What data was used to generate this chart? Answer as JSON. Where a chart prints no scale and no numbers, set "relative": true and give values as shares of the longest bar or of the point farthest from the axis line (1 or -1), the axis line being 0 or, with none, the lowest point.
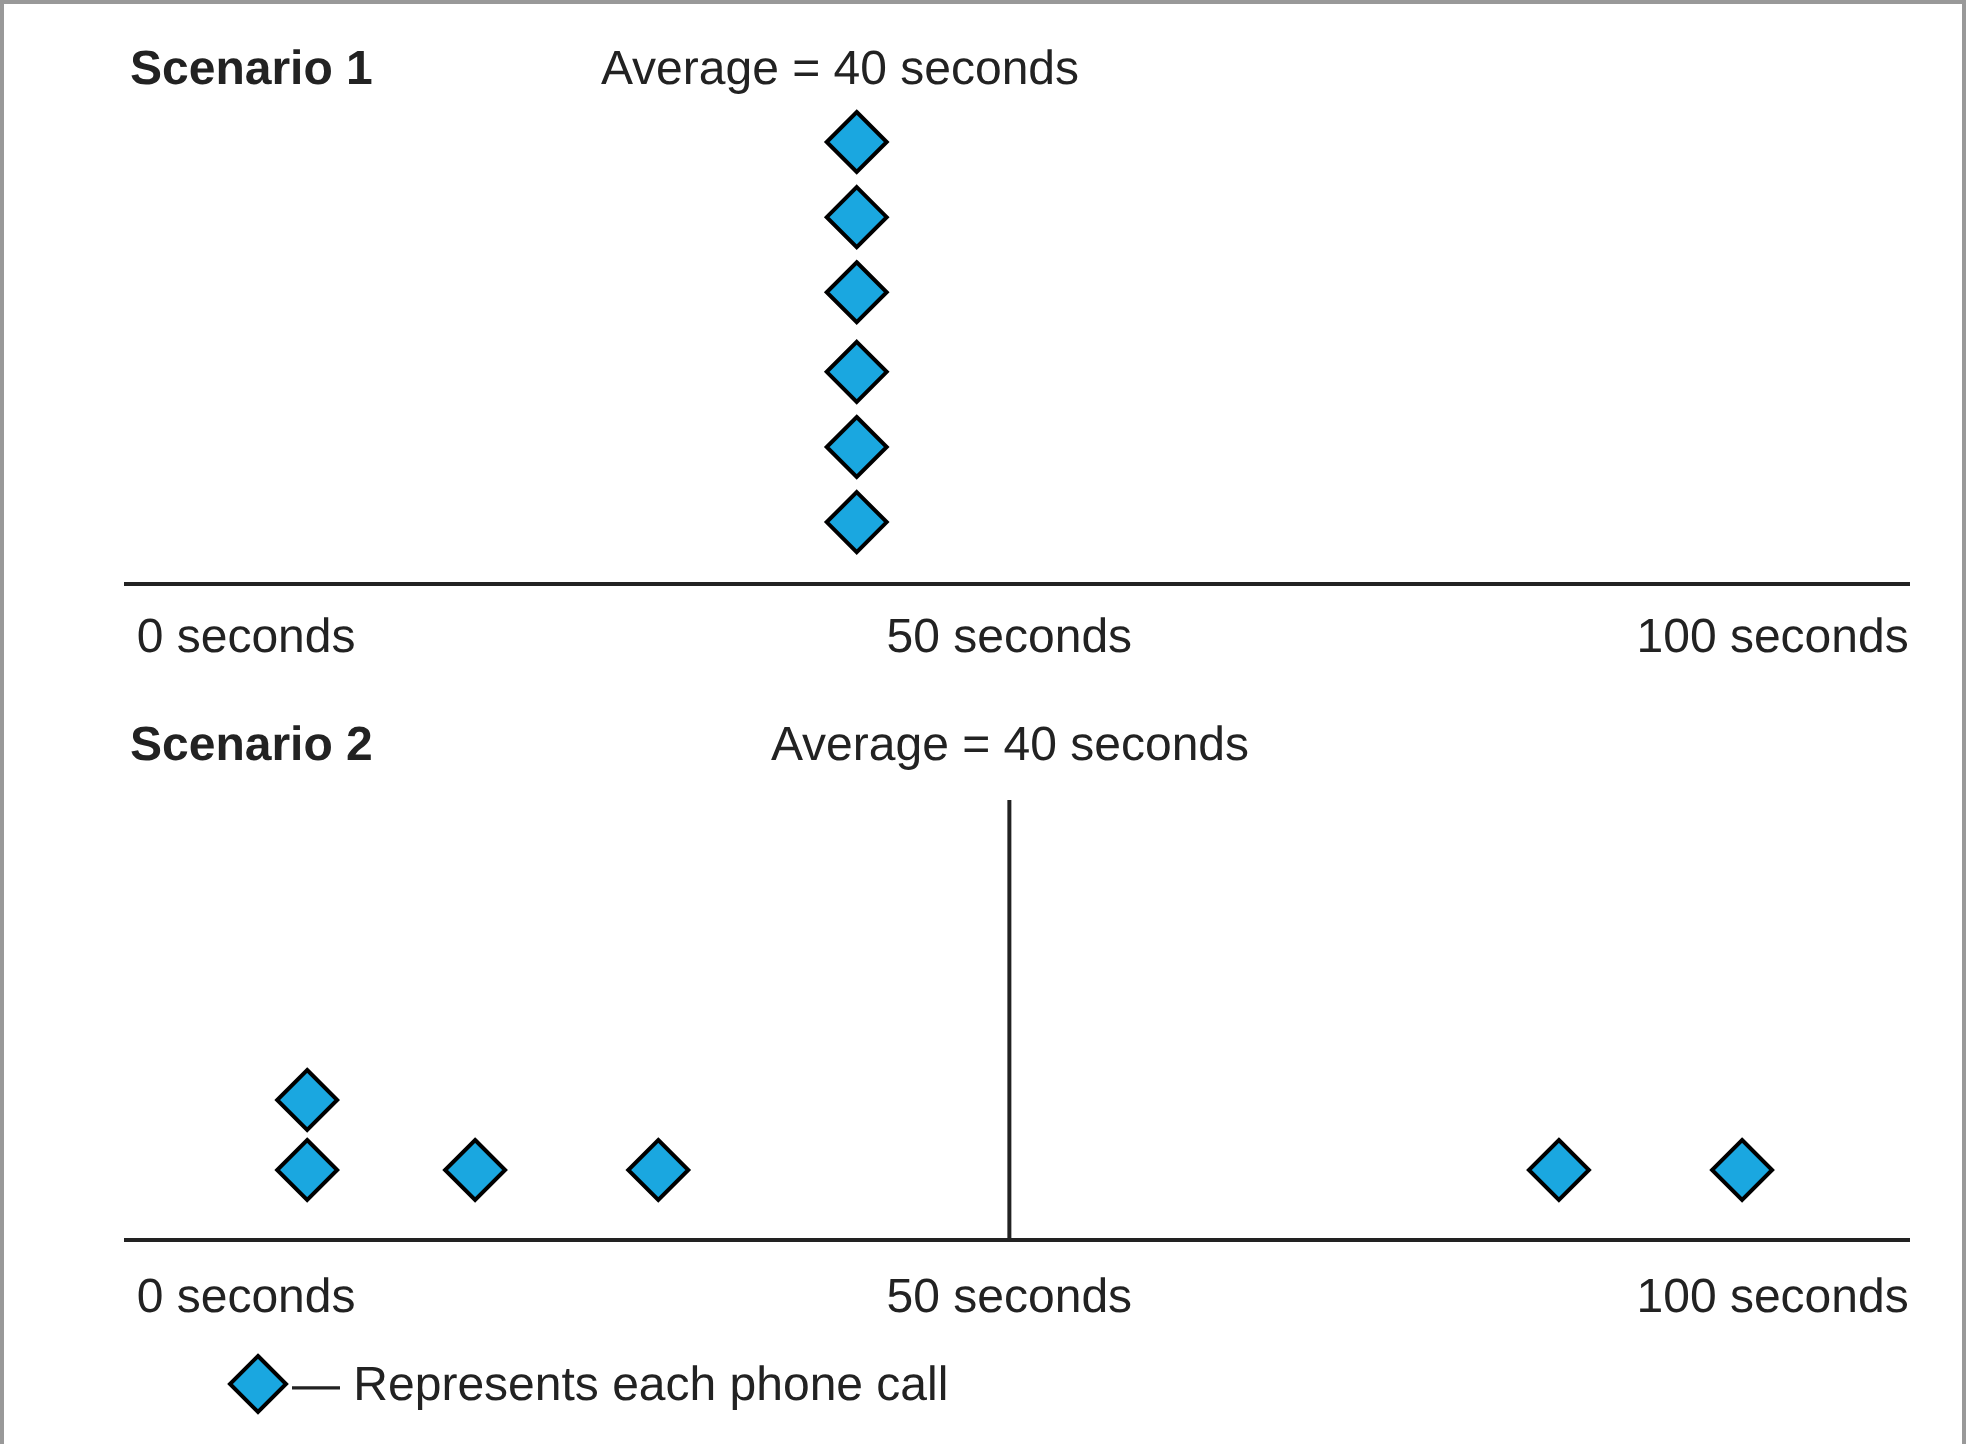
{
  "chart_data": [
    {
      "type": "scatter",
      "title": "Scenario 1",
      "relative": true,
      "marker": "diamond",
      "xlim": [
        -8,
        109
      ],
      "xticks": [
        {
          "value": 0,
          "label": "0 seconds"
        },
        {
          "value": 50,
          "label": "50 seconds"
        },
        {
          "value": 100,
          "label": "100 seconds"
        }
      ],
      "series": [
        {
          "color": "#1aa7e0",
          "x": [
            40,
            40,
            40,
            40,
            40,
            40
          ],
          "values": [
            0.14,
            0.31,
            0.48,
            0.66,
            0.83,
            1
          ]
        }
      ],
      "annotations": [
        "Average = 40 seconds"
      ]
    },
    {
      "type": "scatter",
      "title": "Scenario 2",
      "relative": true,
      "marker": "diamond",
      "xlim": [
        -8,
        109
      ],
      "xticks": [
        {
          "value": 0,
          "label": "0 seconds"
        },
        {
          "value": 50,
          "label": "50 seconds"
        },
        {
          "value": 100,
          "label": "100 seconds"
        }
      ],
      "series": [
        {
          "name": "— Represents each phone call",
          "color": "#1aa7e0",
          "x": [
            4,
            4,
            15,
            27,
            86,
            98
          ],
          "values": [
            0.5,
            1,
            0.5,
            0.5,
            0.5,
            0.5
          ]
        }
      ],
      "ref_lines": [
        {
          "axis": "x",
          "value": 50
        }
      ],
      "annotations": [
        "Average = 40 seconds"
      ],
      "legend": "bottom left"
    }
  ]
}
